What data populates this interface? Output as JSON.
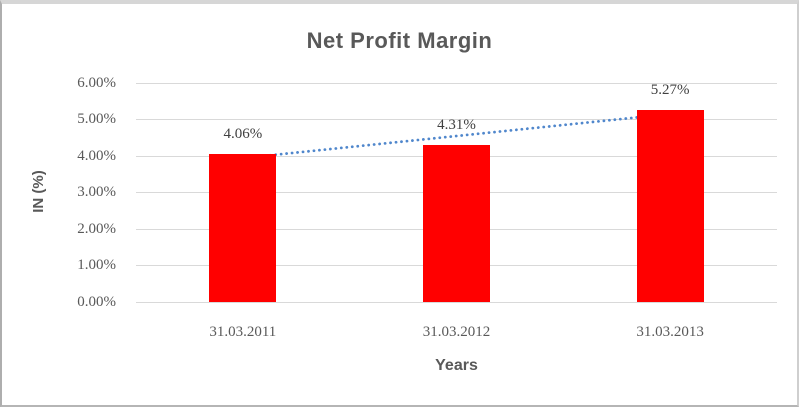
{
  "chart_data": {
    "type": "bar",
    "title": "Net Profit Margin",
    "categories": [
      "31.03.2011",
      "31.03.2012",
      "31.03.2013"
    ],
    "values": [
      4.06,
      4.31,
      5.27
    ],
    "data_labels": [
      "4.06%",
      "4.31%",
      "5.27%"
    ],
    "xlabel": "Years",
    "ylabel": "IN (%)",
    "ylim": [
      0,
      6
    ],
    "ytick_labels": [
      "0.00%",
      "1.00%",
      "2.00%",
      "3.00%",
      "4.00%",
      "5.00%",
      "6.00%"
    ],
    "grid": true,
    "legend": "none",
    "bar_color": "#ff0000",
    "gridline_color": "#d9d9d9",
    "text_color": "#595959",
    "trendline": {
      "style": "dotted",
      "fit": "linear",
      "color": "#5087cc"
    }
  }
}
